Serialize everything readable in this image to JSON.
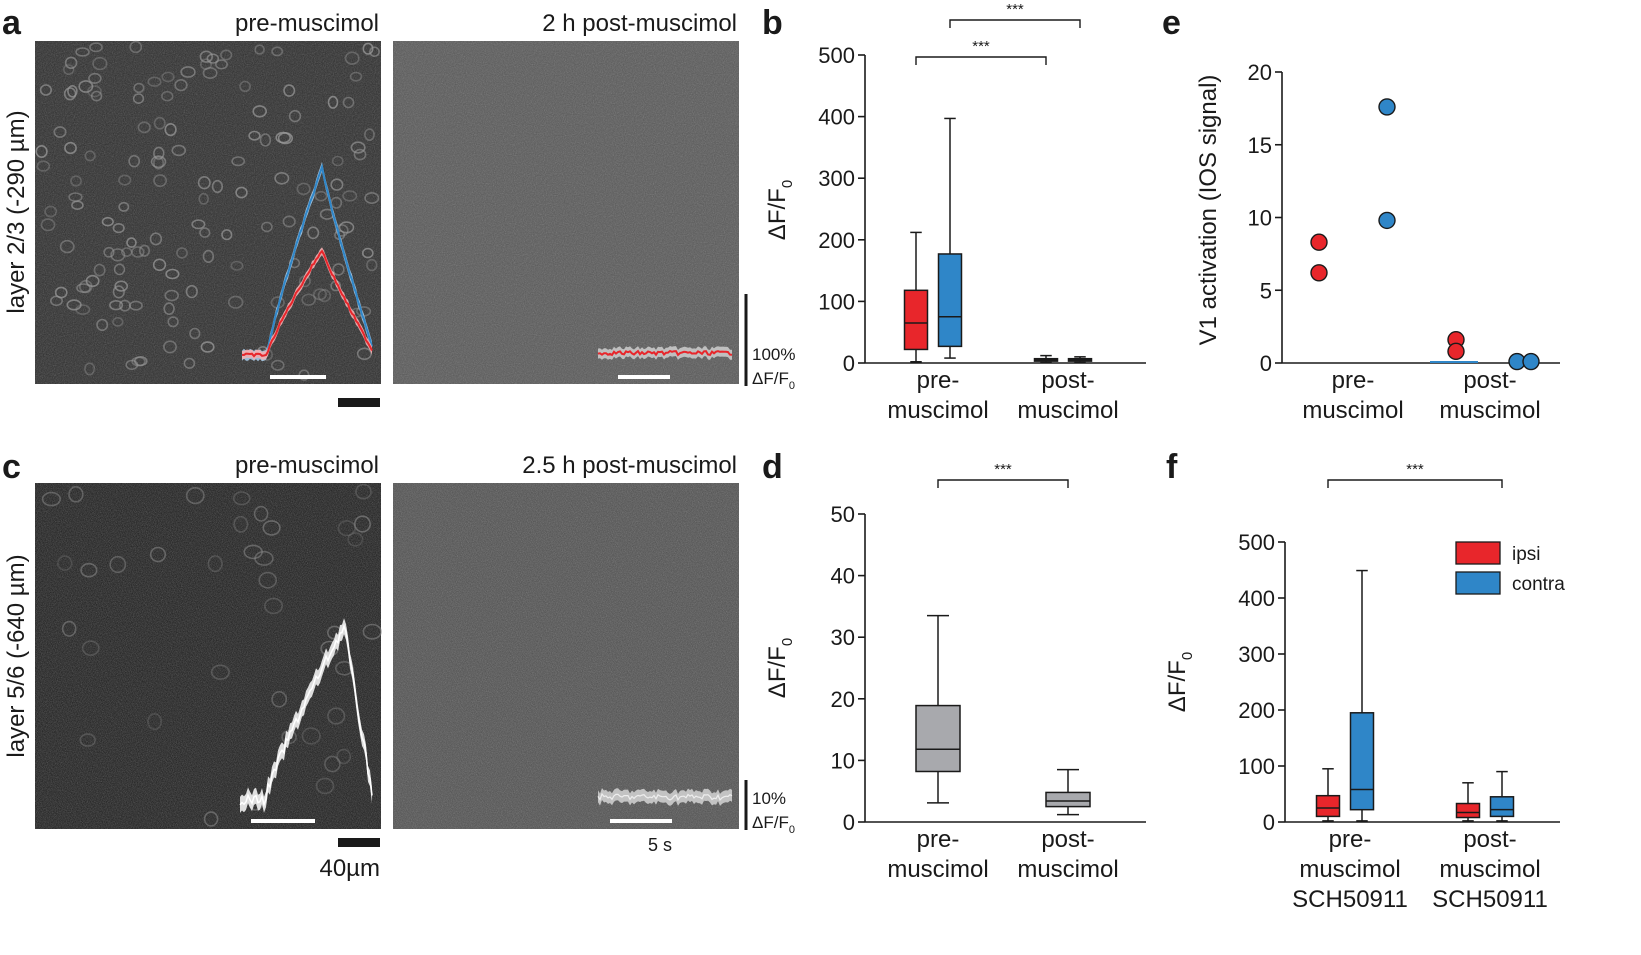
{
  "panels": {
    "a": {
      "letter": "a",
      "side_label": "layer 2/3 (-290 µm)",
      "left_title": "pre-muscimol",
      "right_title": "2 h post-muscimol",
      "scale_label_1": "100%",
      "scale_label_2": "ΔF/F",
      "scale_label_sub": "0"
    },
    "c": {
      "letter": "c",
      "side_label": "layer 5/6 (-640 µm)",
      "left_title": "pre-muscimol",
      "right_title": "2.5 h post-muscimol",
      "scale_label_1": "10%",
      "scale_label_2": "ΔF/F",
      "scale_label_sub": "0",
      "distance_scale": "40µm",
      "time_scale": "5 s"
    },
    "b": {
      "letter": "b"
    },
    "d": {
      "letter": "d"
    },
    "e": {
      "letter": "e"
    },
    "f": {
      "letter": "f"
    }
  },
  "colors": {
    "ipsi": "#e8262b",
    "contra": "#2f86c8",
    "gray_box": "#a8a9ad",
    "image_dark": "#2a2a2a",
    "image_mid": "#565656"
  },
  "chart_data": [
    {
      "id": "b",
      "type": "box",
      "ylabel_main": "ΔF/F",
      "ylabel_sub": "0",
      "ylim": [
        0,
        500
      ],
      "yticks": [
        0,
        100,
        200,
        300,
        400,
        500
      ],
      "categories": [
        [
          "pre-",
          "muscimol"
        ],
        [
          "post-",
          "muscimol"
        ]
      ],
      "series": [
        {
          "color_key": "ipsi",
          "boxes": [
            {
              "min": 2,
              "q1": 22,
              "median": 65,
              "q3": 118,
              "max": 212
            },
            {
              "min": 1,
              "q1": 3,
              "median": 5,
              "q3": 7,
              "max": 12
            }
          ]
        },
        {
          "color_key": "contra",
          "boxes": [
            {
              "min": 8,
              "q1": 27,
              "median": 75,
              "q3": 177,
              "max": 397
            },
            {
              "min": 1,
              "q1": 3,
              "median": 5,
              "q3": 7,
              "max": 10
            }
          ]
        }
      ],
      "significance": [
        {
          "from": [
            0,
            0
          ],
          "to": [
            1,
            0
          ],
          "label": "***"
        },
        {
          "from": [
            0,
            1
          ],
          "to": [
            1,
            1
          ],
          "label": "***"
        }
      ]
    },
    {
      "id": "d",
      "type": "box",
      "ylabel_main": "ΔF/F",
      "ylabel_sub": "0",
      "ylim": [
        0,
        50
      ],
      "yticks": [
        0,
        10,
        20,
        30,
        40,
        50
      ],
      "categories": [
        [
          "pre-",
          "muscimol"
        ],
        [
          "post-",
          "muscimol"
        ]
      ],
      "series": [
        {
          "color_key": "gray_box",
          "boxes": [
            {
              "min": 3.1,
              "q1": 8.2,
              "median": 11.8,
              "q3": 18.9,
              "max": 33.5
            },
            {
              "min": 1.2,
              "q1": 2.5,
              "median": 3.4,
              "q3": 4.8,
              "max": 8.5
            }
          ]
        }
      ],
      "significance": [
        {
          "from": [
            0,
            0
          ],
          "to": [
            1,
            0
          ],
          "label": "***"
        }
      ]
    },
    {
      "id": "e",
      "type": "scatter",
      "ylabel": "V1 activation (IOS signal)",
      "ylim": [
        0,
        20
      ],
      "yticks": [
        0,
        5,
        10,
        15,
        20
      ],
      "categories": [
        [
          "pre-",
          "muscimol"
        ],
        [
          "post-",
          "muscimol"
        ]
      ],
      "series": [
        {
          "color_key": "ipsi",
          "points": [
            [
              0,
              8.3
            ],
            [
              0,
              6.2
            ],
            [
              1,
              1.6
            ],
            [
              1,
              0.8
            ]
          ]
        },
        {
          "color_key": "contra",
          "points": [
            [
              0,
              17.6
            ],
            [
              0,
              9.8
            ],
            [
              1,
              0.1
            ],
            [
              1,
              0.1
            ]
          ]
        }
      ]
    },
    {
      "id": "f",
      "type": "box",
      "ylabel_main": "ΔF/F",
      "ylabel_sub": "0",
      "ylim": [
        0,
        500
      ],
      "yticks": [
        0,
        100,
        200,
        300,
        400,
        500
      ],
      "categories": [
        [
          "pre-",
          "muscimol",
          "SCH50911"
        ],
        [
          "post-",
          "muscimol",
          "SCH50911"
        ]
      ],
      "series": [
        {
          "name": "ipsi",
          "color_key": "ipsi",
          "boxes": [
            {
              "min": 2,
              "q1": 10,
              "median": 25,
              "q3": 47,
              "max": 95
            },
            {
              "min": 2,
              "q1": 8,
              "median": 17,
              "q3": 33,
              "max": 70
            }
          ]
        },
        {
          "name": "contra",
          "color_key": "contra",
          "boxes": [
            {
              "min": 2,
              "q1": 22,
              "median": 58,
              "q3": 195,
              "max": 449
            },
            {
              "min": 2,
              "q1": 10,
              "median": 22,
              "q3": 45,
              "max": 90
            }
          ]
        }
      ],
      "legend": [
        "ipsi",
        "contra"
      ],
      "significance": [
        {
          "from": [
            0,
            0
          ],
          "to": [
            1,
            1
          ],
          "label": "***"
        }
      ]
    }
  ]
}
